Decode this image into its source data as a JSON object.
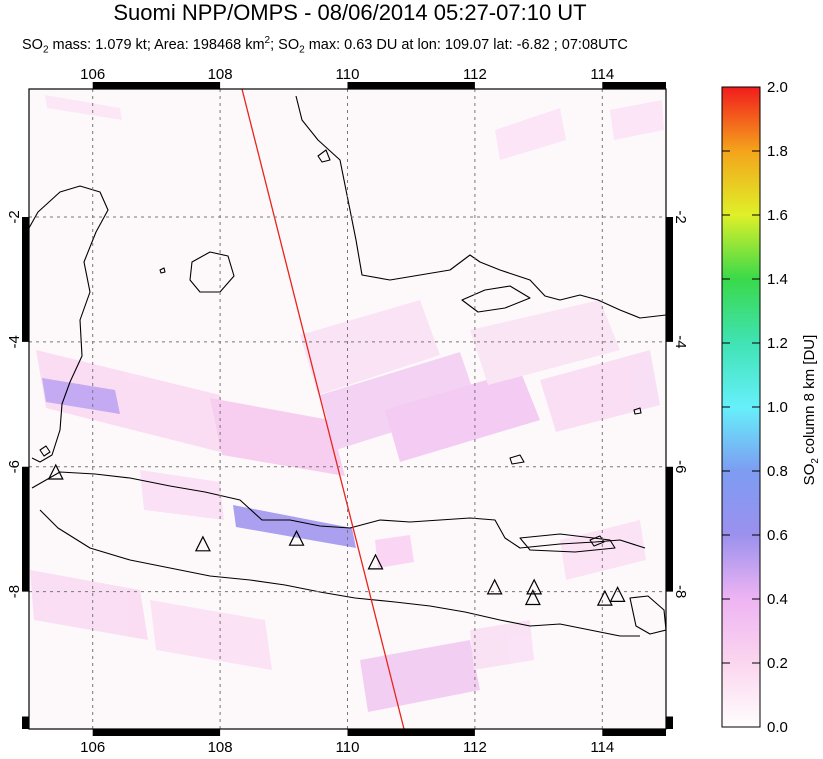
{
  "title": "Suomi NPP/OMPS - 08/06/2014 05:27-07:10 UT",
  "subtitle": {
    "p1": "SO",
    "p1_sub": "2",
    "p2": " mass: 1.079 kt; Area: 198468 km",
    "p2_sup": "2",
    "p3": "; SO",
    "p3_sub": "2",
    "p4": " max: 0.63 DU at lon: 109.07 lat: -6.82 ; 07:08UTC"
  },
  "map": {
    "lon_range": [
      105,
      115
    ],
    "lat_range": [
      -10.2,
      0.05
    ],
    "lon_ticks": [
      "106",
      "108",
      "110",
      "112",
      "114"
    ],
    "lat_ticks": [
      "-2",
      "-4",
      "-6",
      "-8"
    ],
    "colors": {
      "water": "#fdf9fb",
      "track_line": "#e8241c",
      "coast": "#000000",
      "grid": "#777777"
    }
  },
  "colorbar": {
    "title_main": "SO",
    "title_sub": "2",
    "title_rest": " column 8 km [DU]",
    "ticks": [
      "0.0",
      "0.2",
      "0.4",
      "0.6",
      "0.8",
      "1.0",
      "1.2",
      "1.4",
      "1.6",
      "1.8",
      "2.0"
    ]
  },
  "volcanoes": [
    {
      "lon": 105.42,
      "lat": -6.1
    },
    {
      "lon": 107.73,
      "lat": -7.25
    },
    {
      "lon": 109.2,
      "lat": -7.16
    },
    {
      "lon": 110.44,
      "lat": -7.54
    },
    {
      "lon": 112.31,
      "lat": -7.94
    },
    {
      "lon": 112.93,
      "lat": -7.94
    },
    {
      "lon": 112.91,
      "lat": -8.11
    },
    {
      "lon": 114.04,
      "lat": -8.12
    },
    {
      "lon": 114.24,
      "lat": -8.06
    }
  ]
}
